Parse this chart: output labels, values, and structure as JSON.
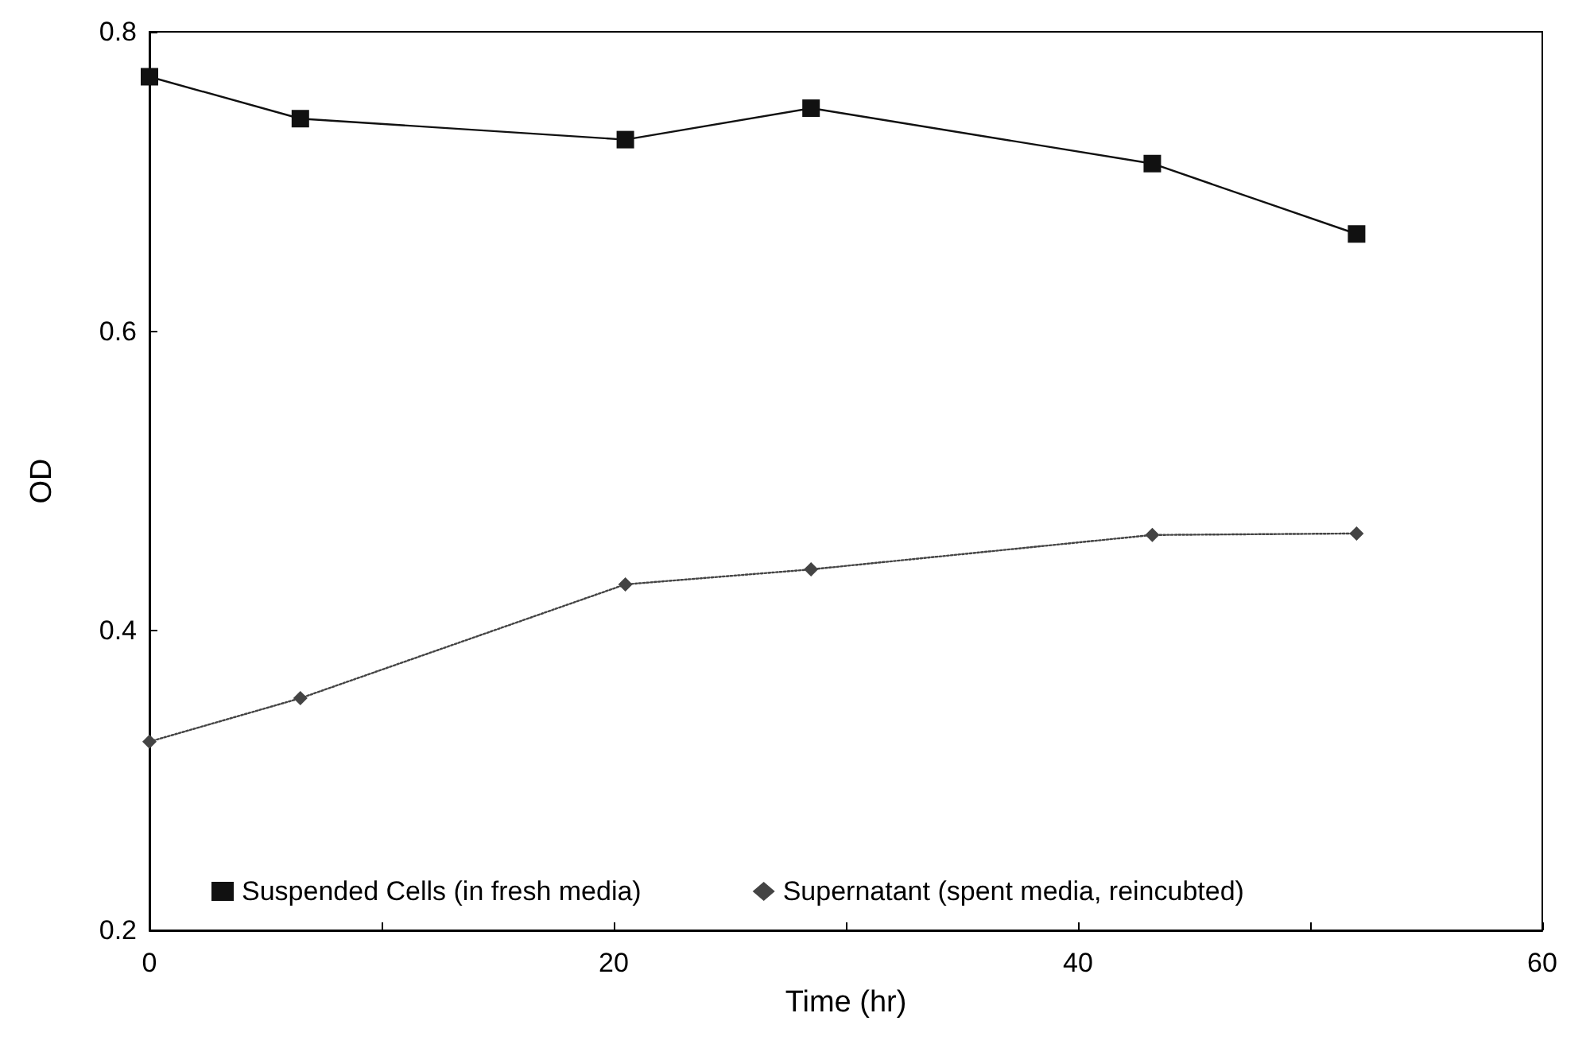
{
  "chart_data": {
    "type": "line",
    "xlabel": "Time (hr)",
    "ylabel": "OD",
    "xlim": [
      0,
      60
    ],
    "xticks": [
      0,
      {
        "value": 10,
        "label": null
      },
      20,
      {
        "value": 30,
        "label": null
      },
      40,
      {
        "value": 50,
        "label": null
      },
      60
    ],
    "ylim": [
      0.2,
      0.8
    ],
    "yticks": [
      0.2,
      0.4,
      0.6,
      0.8
    ],
    "grid": false,
    "legend": "bottom",
    "series": [
      {
        "name": "Suspended Cells (in fresh media)",
        "color": "#111111",
        "marker": "square",
        "line_style": "solid",
        "x": [
          0,
          6.5,
          20.5,
          28.5,
          43.2,
          52.0
        ],
        "values": [
          0.77,
          0.742,
          0.728,
          0.749,
          0.712,
          0.665
        ]
      },
      {
        "name": "Supernatant (spent media, reincubted)",
        "color": "#444444",
        "marker": "diamond",
        "line_style": "dotted",
        "x": [
          0,
          6.5,
          20.5,
          28.5,
          43.2,
          52.0
        ],
        "values": [
          0.326,
          0.355,
          0.431,
          0.441,
          0.464,
          0.465
        ]
      }
    ]
  }
}
